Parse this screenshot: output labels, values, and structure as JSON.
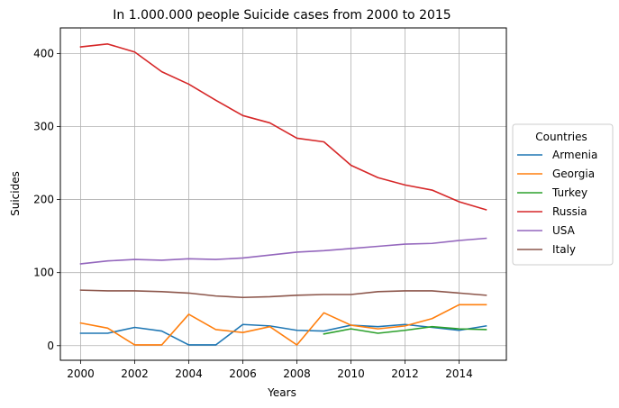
{
  "chart_data": {
    "type": "line",
    "title": "In 1.000.000 people Suicide cases from 2000 to 2015",
    "xlabel": "Years",
    "ylabel": "Suicides",
    "xlim": [
      1999.25,
      2015.75
    ],
    "ylim": [
      -20,
      435
    ],
    "xticks": [
      2000,
      2002,
      2004,
      2006,
      2008,
      2010,
      2012,
      2014
    ],
    "yticks": [
      0,
      100,
      200,
      300,
      400
    ],
    "grid": true,
    "legend": {
      "title": "Countries",
      "placement": "outside right"
    },
    "series": [
      {
        "name": "Armenia",
        "color": "#1f77b4",
        "x": [
          2000,
          2001,
          2002,
          2003,
          2004,
          2005,
          2006,
          2007,
          2008,
          2009,
          2010,
          2011,
          2012,
          2013,
          2014,
          2015
        ],
        "values": [
          17,
          17,
          25,
          20,
          1,
          1,
          29,
          27,
          21,
          20,
          28,
          26,
          29,
          25,
          21,
          27
        ]
      },
      {
        "name": "Georgia",
        "color": "#ff7f0e",
        "x": [
          2000,
          2001,
          2002,
          2003,
          2004,
          2005,
          2006,
          2007,
          2008,
          2009,
          2010,
          2011,
          2012,
          2013,
          2014,
          2015
        ],
        "values": [
          31,
          24,
          1,
          1,
          43,
          22,
          18,
          26,
          1,
          45,
          28,
          23,
          27,
          37,
          56,
          56
        ]
      },
      {
        "name": "Turkey",
        "color": "#2ca02c",
        "x": [
          2009,
          2010,
          2011,
          2012,
          2013,
          2014,
          2015
        ],
        "values": [
          16,
          23,
          17,
          21,
          26,
          23,
          22
        ]
      },
      {
        "name": "Russia",
        "color": "#d62728",
        "x": [
          2000,
          2001,
          2002,
          2003,
          2004,
          2005,
          2006,
          2007,
          2008,
          2009,
          2010,
          2011,
          2012,
          2013,
          2014,
          2015
        ],
        "values": [
          409,
          413,
          402,
          375,
          358,
          336,
          315,
          305,
          284,
          279,
          247,
          230,
          220,
          213,
          197,
          186
        ]
      },
      {
        "name": "USA",
        "color": "#9467bd",
        "x": [
          2000,
          2001,
          2002,
          2003,
          2004,
          2005,
          2006,
          2007,
          2008,
          2009,
          2010,
          2011,
          2012,
          2013,
          2014,
          2015
        ],
        "values": [
          112,
          116,
          118,
          117,
          119,
          118,
          120,
          124,
          128,
          130,
          133,
          136,
          139,
          140,
          144,
          147
        ]
      },
      {
        "name": "Italy",
        "color": "#8c564b",
        "x": [
          2000,
          2001,
          2002,
          2003,
          2004,
          2005,
          2006,
          2007,
          2008,
          2009,
          2010,
          2011,
          2012,
          2013,
          2014,
          2015
        ],
        "values": [
          76,
          75,
          75,
          74,
          72,
          68,
          66,
          67,
          69,
          70,
          70,
          74,
          75,
          75,
          72,
          69
        ]
      }
    ]
  }
}
